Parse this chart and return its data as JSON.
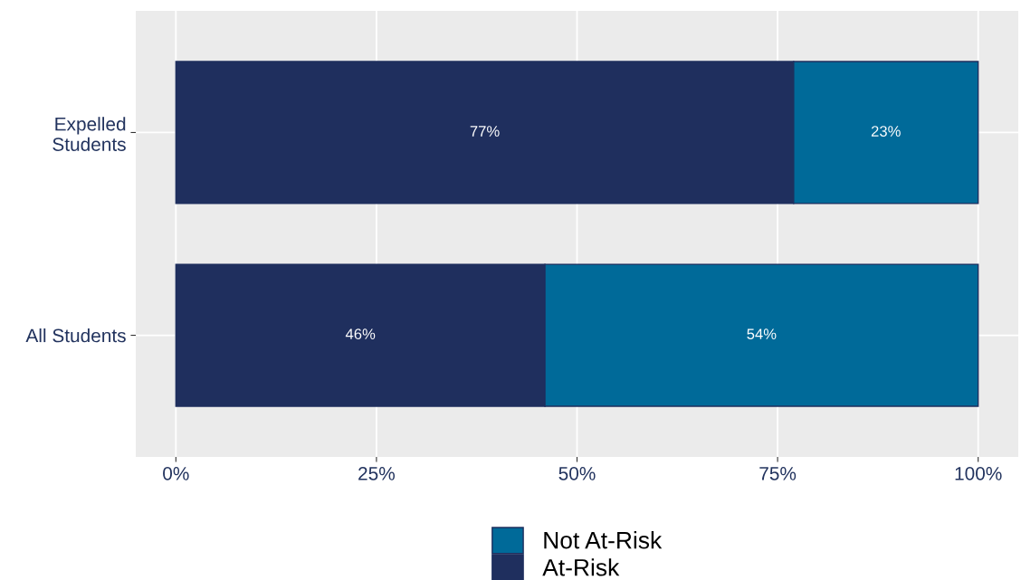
{
  "chart_data": {
    "type": "bar",
    "orientation": "horizontal",
    "stacked": true,
    "categories": [
      "Expelled\nStudents",
      "All Students"
    ],
    "series": [
      {
        "name": "At-Risk",
        "color": "#1f2f5e",
        "values": [
          77,
          46
        ],
        "value_labels": [
          "77%",
          "46%"
        ]
      },
      {
        "name": "Not At-Risk",
        "color": "#006a99",
        "values": [
          23,
          54
        ],
        "value_labels": [
          "23%",
          "54%"
        ]
      }
    ],
    "xlim": [
      -5,
      105
    ],
    "xticks": [
      {
        "value": 0,
        "label": "0%"
      },
      {
        "value": 25,
        "label": "25%"
      },
      {
        "value": 50,
        "label": "50%"
      },
      {
        "value": 75,
        "label": "75%"
      },
      {
        "value": 100,
        "label": "100%"
      }
    ],
    "grid": true,
    "legend": "bottom"
  }
}
